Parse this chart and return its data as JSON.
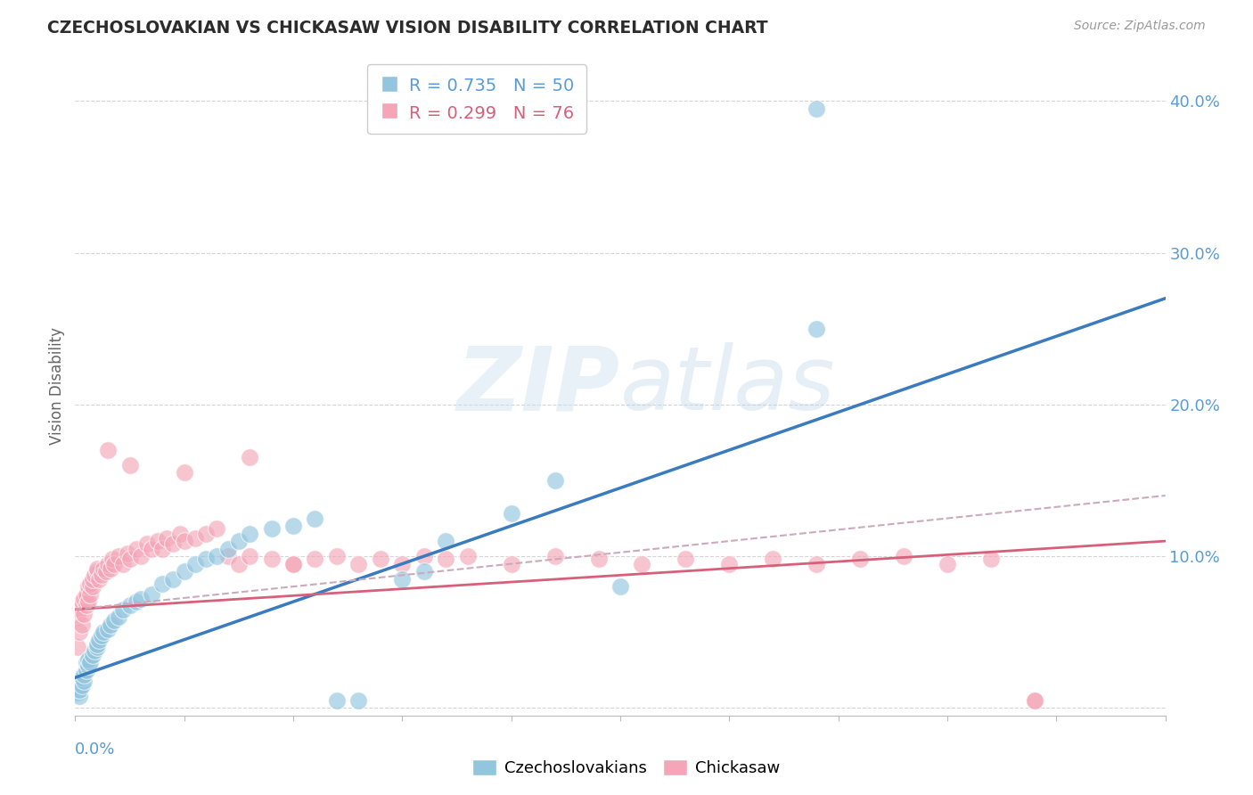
{
  "title": "CZECHOSLOVAKIAN VS CHICKASAW VISION DISABILITY CORRELATION CHART",
  "source": "Source: ZipAtlas.com",
  "ylabel": "Vision Disability",
  "xlim": [
    0.0,
    0.5
  ],
  "ylim": [
    -0.005,
    0.43
  ],
  "legend_r1": "R = 0.735",
  "legend_n1": "N = 50",
  "legend_r2": "R = 0.299",
  "legend_n2": "N = 76",
  "blue_color": "#92c5de",
  "pink_color": "#f4a6b8",
  "blue_line_color": "#3a7abf",
  "pink_line_color": "#d6607a",
  "dashed_line_color": "#ccaabb",
  "axis_label_color": "#5b9bd5",
  "grid_color": "#d0d0d0",
  "background_color": "#ffffff",
  "watermark_color": "#d5e8f5",
  "blue_x": [
    0.001,
    0.002,
    0.002,
    0.003,
    0.003,
    0.004,
    0.004,
    0.005,
    0.005,
    0.006,
    0.006,
    0.007,
    0.008,
    0.009,
    0.01,
    0.01,
    0.011,
    0.012,
    0.013,
    0.015,
    0.016,
    0.018,
    0.02,
    0.022,
    0.025,
    0.028,
    0.03,
    0.035,
    0.04,
    0.045,
    0.05,
    0.055,
    0.06,
    0.065,
    0.07,
    0.075,
    0.08,
    0.09,
    0.1,
    0.11,
    0.12,
    0.13,
    0.15,
    0.16,
    0.17,
    0.2,
    0.22,
    0.25,
    0.34,
    0.34
  ],
  "blue_y": [
    0.01,
    0.008,
    0.012,
    0.015,
    0.02,
    0.018,
    0.022,
    0.025,
    0.03,
    0.028,
    0.032,
    0.03,
    0.035,
    0.038,
    0.04,
    0.042,
    0.045,
    0.048,
    0.05,
    0.052,
    0.055,
    0.058,
    0.06,
    0.065,
    0.068,
    0.07,
    0.072,
    0.075,
    0.082,
    0.085,
    0.09,
    0.095,
    0.098,
    0.1,
    0.105,
    0.11,
    0.115,
    0.118,
    0.12,
    0.125,
    0.005,
    0.005,
    0.085,
    0.09,
    0.11,
    0.128,
    0.15,
    0.08,
    0.25,
    0.395
  ],
  "pink_x": [
    0.001,
    0.001,
    0.002,
    0.002,
    0.003,
    0.003,
    0.004,
    0.004,
    0.005,
    0.005,
    0.006,
    0.006,
    0.007,
    0.007,
    0.008,
    0.008,
    0.009,
    0.01,
    0.01,
    0.011,
    0.012,
    0.013,
    0.014,
    0.015,
    0.016,
    0.017,
    0.018,
    0.02,
    0.022,
    0.024,
    0.025,
    0.028,
    0.03,
    0.033,
    0.035,
    0.038,
    0.04,
    0.042,
    0.045,
    0.048,
    0.05,
    0.055,
    0.06,
    0.065,
    0.07,
    0.075,
    0.08,
    0.09,
    0.1,
    0.11,
    0.12,
    0.13,
    0.14,
    0.15,
    0.16,
    0.17,
    0.18,
    0.2,
    0.22,
    0.24,
    0.26,
    0.28,
    0.3,
    0.32,
    0.34,
    0.36,
    0.38,
    0.4,
    0.42,
    0.44,
    0.015,
    0.025,
    0.05,
    0.08,
    0.1,
    0.44
  ],
  "pink_y": [
    0.04,
    0.06,
    0.05,
    0.065,
    0.055,
    0.07,
    0.062,
    0.072,
    0.068,
    0.075,
    0.07,
    0.08,
    0.075,
    0.082,
    0.08,
    0.085,
    0.088,
    0.09,
    0.092,
    0.085,
    0.088,
    0.092,
    0.09,
    0.095,
    0.092,
    0.098,
    0.095,
    0.1,
    0.095,
    0.102,
    0.098,
    0.105,
    0.1,
    0.108,
    0.105,
    0.11,
    0.105,
    0.112,
    0.108,
    0.115,
    0.11,
    0.112,
    0.115,
    0.118,
    0.1,
    0.095,
    0.1,
    0.098,
    0.095,
    0.098,
    0.1,
    0.095,
    0.098,
    0.095,
    0.1,
    0.098,
    0.1,
    0.095,
    0.1,
    0.098,
    0.095,
    0.098,
    0.095,
    0.098,
    0.095,
    0.098,
    0.1,
    0.095,
    0.098,
    0.005,
    0.17,
    0.16,
    0.155,
    0.165,
    0.095,
    0.005
  ],
  "blue_trend_x": [
    0.0,
    0.5
  ],
  "blue_trend_y": [
    0.02,
    0.27
  ],
  "pink_trend_x": [
    0.0,
    0.5
  ],
  "pink_trend_y": [
    0.065,
    0.11
  ],
  "dashed_trend_x": [
    0.0,
    0.5
  ],
  "dashed_trend_y": [
    0.065,
    0.14
  ]
}
